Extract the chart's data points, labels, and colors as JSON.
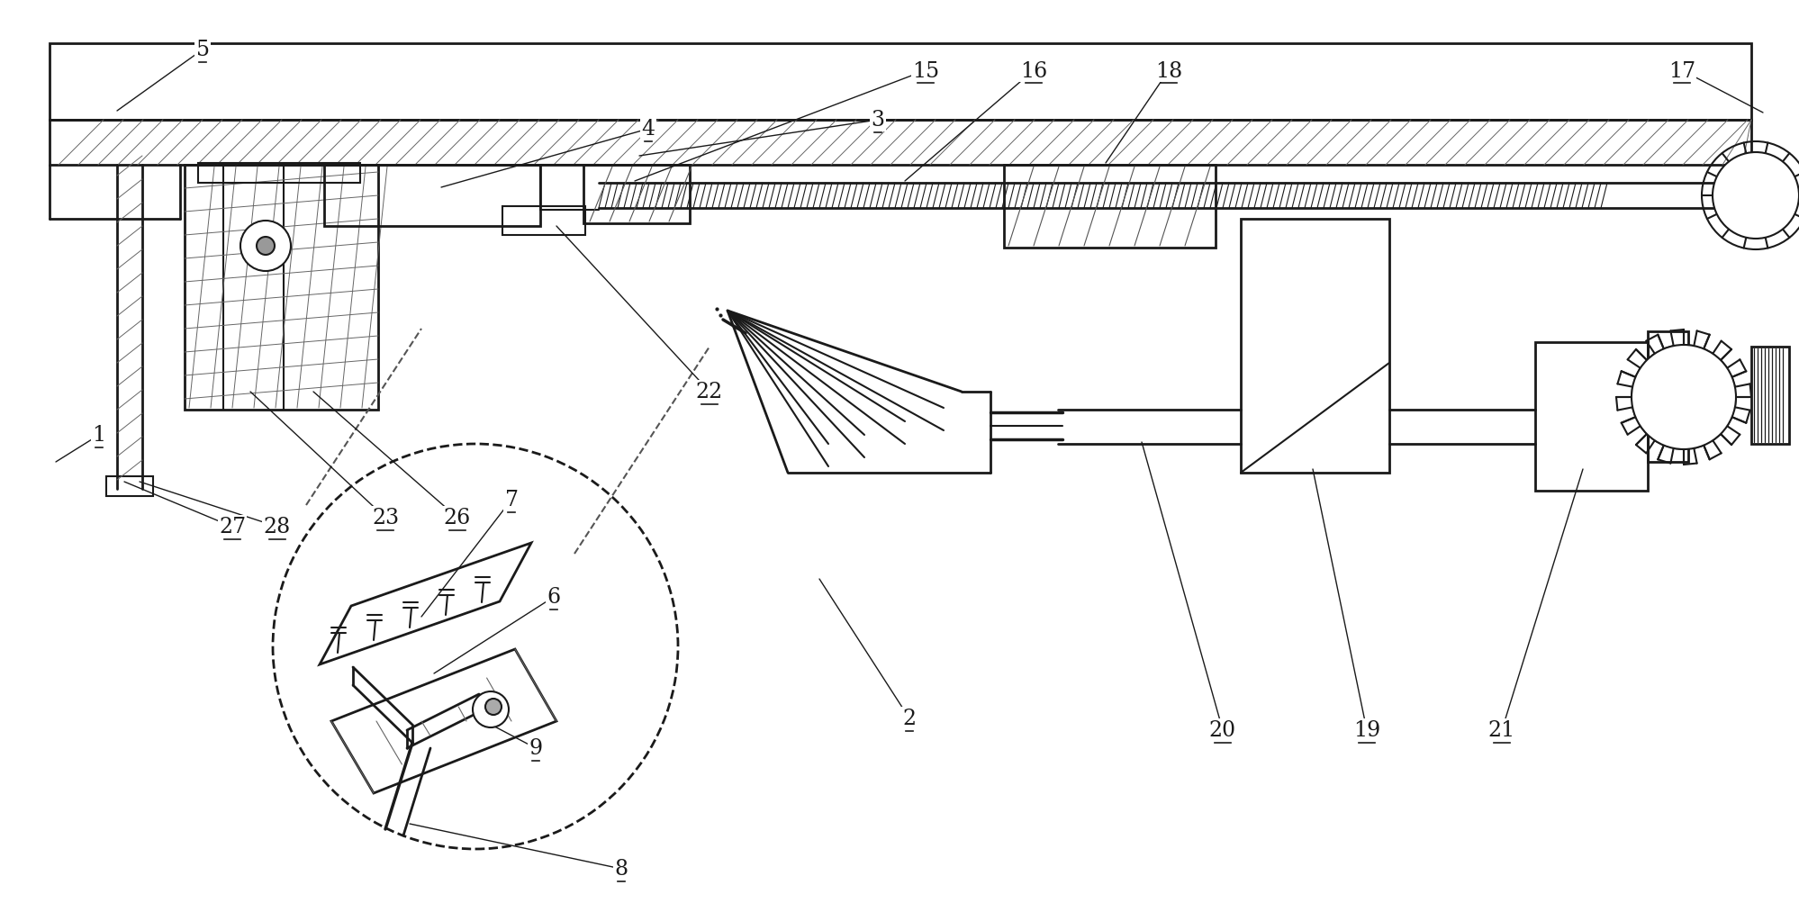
{
  "figure_width": 19.98,
  "figure_height": 10.04,
  "bg_color": "#ffffff",
  "line_color": "#1a1a1a",
  "line_width": 1.5,
  "labels_data": [
    [
      "1",
      110,
      520,
      62,
      490
    ],
    [
      "2",
      1010,
      205,
      910,
      360
    ],
    [
      "3",
      975,
      870,
      710,
      830
    ],
    [
      "4",
      720,
      860,
      490,
      795
    ],
    [
      "5",
      225,
      948,
      130,
      880
    ],
    [
      "6",
      615,
      340,
      482,
      255
    ],
    [
      "7",
      568,
      448,
      468,
      318
    ],
    [
      "8",
      690,
      38,
      455,
      88
    ],
    [
      "9",
      595,
      172,
      538,
      202
    ],
    [
      "15",
      1028,
      925,
      705,
      802
    ],
    [
      "16",
      1148,
      925,
      1005,
      802
    ],
    [
      "17",
      1868,
      925,
      1958,
      878
    ],
    [
      "18",
      1298,
      925,
      1228,
      822
    ],
    [
      "19",
      1518,
      192,
      1458,
      482
    ],
    [
      "20",
      1358,
      192,
      1268,
      512
    ],
    [
      "21",
      1668,
      192,
      1758,
      482
    ],
    [
      "22",
      788,
      568,
      618,
      752
    ],
    [
      "23",
      428,
      428,
      278,
      568
    ],
    [
      "26",
      508,
      428,
      348,
      568
    ],
    [
      "27",
      258,
      418,
      138,
      468
    ],
    [
      "28",
      308,
      418,
      155,
      468
    ]
  ]
}
